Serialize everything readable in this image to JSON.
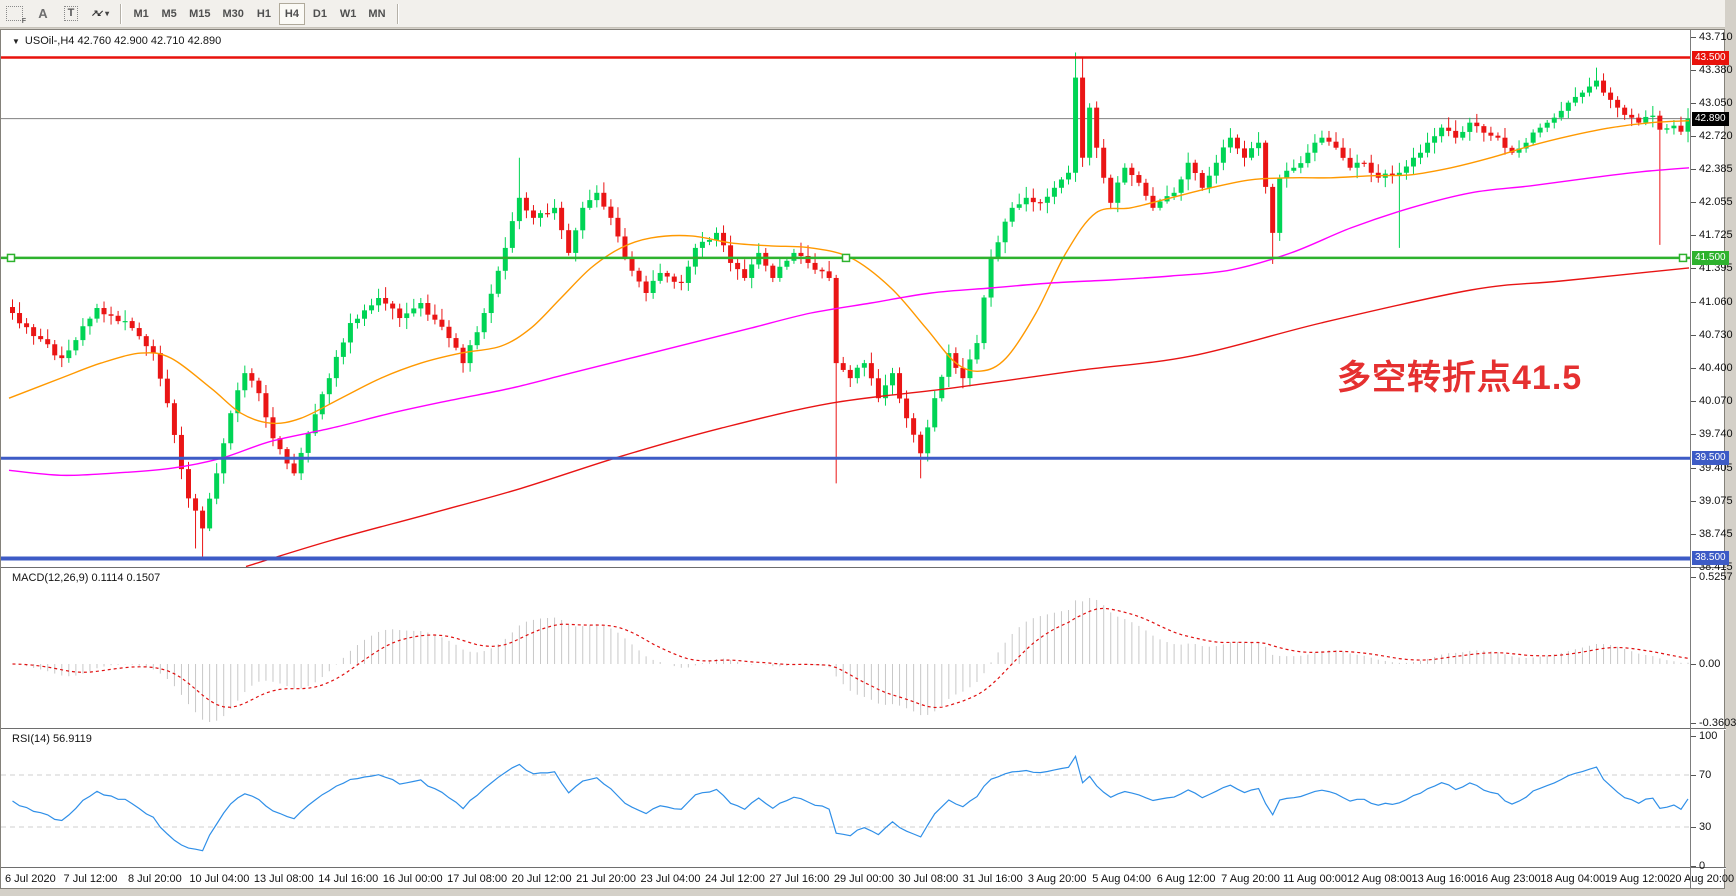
{
  "toolbar": {
    "icons": [
      {
        "name": "grid-period-icon",
        "label": "F"
      },
      {
        "name": "text-label-icon",
        "label": "A"
      },
      {
        "name": "text-box-icon",
        "label": "T"
      },
      {
        "name": "crosshair-arrows-icon",
        "label": "↗↙"
      },
      {
        "name": "dropdown-caret-icon",
        "label": "▾"
      }
    ],
    "timeframes": [
      "M1",
      "M5",
      "M15",
      "M30",
      "H1",
      "H4",
      "D1",
      "W1",
      "MN"
    ],
    "active_timeframe": "H4"
  },
  "chart": {
    "collapse_glyph": "▼",
    "title": "USOil-,H4  42.760 42.900 42.710 42.890",
    "symbol": "USOil-",
    "timeframe": "H4",
    "ohlc": {
      "open": "42.760",
      "high": "42.900",
      "low": "42.710",
      "close": "42.890"
    },
    "annotation": {
      "text": "多空转折点41.5",
      "color": "#e53030"
    }
  },
  "chart_data": {
    "type": "candlestick",
    "symbol": "USOil",
    "timeframe": "H4",
    "colors": {
      "up": "#00d455",
      "down": "#ea1515",
      "ma_fast": "#ff9900",
      "ma_mid": "#ff00ff",
      "ma_slow": "#e81414",
      "macd_hist": "#c8c8c8",
      "macd_signal": "#e01010",
      "rsi_line": "#2f8fe8",
      "current_price_line": "#808080"
    },
    "price_axis_ticks": [
      "43.710",
      "43.380",
      "43.050",
      "42.720",
      "42.385",
      "42.055",
      "41.725",
      "41.395",
      "41.060",
      "40.730",
      "40.400",
      "40.070",
      "39.740",
      "39.405",
      "39.075",
      "38.745",
      "38.415"
    ],
    "price_axis_tick_values": [
      43.71,
      43.38,
      43.05,
      42.72,
      42.385,
      42.055,
      41.725,
      41.395,
      41.06,
      40.73,
      40.4,
      40.07,
      39.74,
      39.405,
      39.075,
      38.745,
      38.415
    ],
    "badges": [
      {
        "text": "43.500",
        "value": 43.5,
        "color": "#e8120c"
      },
      {
        "text": "42.890",
        "value": 42.89,
        "color": "#000000"
      },
      {
        "text": "41.500",
        "value": 41.5,
        "color": "#2eb22e"
      },
      {
        "text": "39.500",
        "value": 39.5,
        "color": "#3d5bc6"
      },
      {
        "text": "38.500",
        "value": 38.5,
        "color": "#3d5bc6"
      }
    ],
    "horizontal_lines": [
      {
        "value": 43.5,
        "color": "#e8120c",
        "width": 2.5,
        "selected": false
      },
      {
        "value": 41.5,
        "color": "#2eb22e",
        "width": 2.5,
        "selected": true
      },
      {
        "value": 39.5,
        "color": "#3d5bc6",
        "width": 3,
        "selected": false
      },
      {
        "value": 38.5,
        "color": "#3d5bc6",
        "width": 4,
        "selected": false
      }
    ],
    "current_price": {
      "value": 42.89,
      "label": "42.890"
    },
    "x_labels": [
      "6 Jul 2020",
      "7 Jul 12:00",
      "8 Jul 20:00",
      "10 Jul 04:00",
      "13 Jul 08:00",
      "14 Jul 16:00",
      "16 Jul 00:00",
      "17 Jul 08:00",
      "20 Jul 12:00",
      "21 Jul 20:00",
      "23 Jul 04:00",
      "24 Jul 12:00",
      "27 Jul 16:00",
      "29 Jul 00:00",
      "30 Jul 08:00",
      "31 Jul 16:00",
      "3 Aug 20:00",
      "5 Aug 04:00",
      "6 Aug 12:00",
      "7 Aug 20:00",
      "11 Aug 00:00",
      "12 Aug 08:00",
      "13 Aug 16:00",
      "16 Aug 23:00",
      "18 Aug 04:00",
      "19 Aug 12:00",
      "20 Aug 20:00"
    ],
    "price_range": [
      38.415,
      43.755
    ],
    "close_anchors": [
      [
        0,
        40.95
      ],
      [
        3,
        40.72
      ],
      [
        7,
        40.5
      ],
      [
        12,
        41.0
      ],
      [
        17,
        40.8
      ],
      [
        20,
        40.55
      ],
      [
        22,
        40.05
      ],
      [
        25,
        39.1
      ],
      [
        27,
        38.8
      ],
      [
        29,
        39.35
      ],
      [
        31,
        39.95
      ],
      [
        33,
        40.35
      ],
      [
        35,
        40.15
      ],
      [
        37,
        39.7
      ],
      [
        40,
        39.35
      ],
      [
        42,
        39.75
      ],
      [
        45,
        40.3
      ],
      [
        48,
        40.85
      ],
      [
        52,
        41.1
      ],
      [
        55,
        40.9
      ],
      [
        58,
        41.05
      ],
      [
        62,
        40.7
      ],
      [
        64,
        40.45
      ],
      [
        67,
        40.95
      ],
      [
        70,
        41.6
      ],
      [
        72,
        42.1
      ],
      [
        74,
        41.9
      ],
      [
        77,
        42.0
      ],
      [
        79,
        41.55
      ],
      [
        81,
        42.0
      ],
      [
        83,
        42.15
      ],
      [
        85,
        41.9
      ],
      [
        87,
        41.5
      ],
      [
        90,
        41.15
      ],
      [
        92,
        41.35
      ],
      [
        95,
        41.25
      ],
      [
        97,
        41.6
      ],
      [
        100,
        41.75
      ],
      [
        102,
        41.45
      ],
      [
        104,
        41.3
      ],
      [
        106,
        41.55
      ],
      [
        108,
        41.3
      ],
      [
        111,
        41.55
      ],
      [
        113,
        41.45
      ],
      [
        116,
        41.3
      ],
      [
        117,
        40.45
      ],
      [
        119,
        40.3
      ],
      [
        121,
        40.45
      ],
      [
        123,
        40.1
      ],
      [
        125,
        40.35
      ],
      [
        127,
        39.9
      ],
      [
        129,
        39.55
      ],
      [
        131,
        40.1
      ],
      [
        133,
        40.55
      ],
      [
        135,
        40.3
      ],
      [
        137,
        40.65
      ],
      [
        139,
        41.5
      ],
      [
        142,
        42.0
      ],
      [
        144,
        42.1
      ],
      [
        146,
        42.05
      ],
      [
        148,
        42.2
      ],
      [
        150,
        42.35
      ],
      [
        151,
        43.3
      ],
      [
        152,
        42.5
      ],
      [
        153,
        43.0
      ],
      [
        154,
        42.6
      ],
      [
        155,
        42.3
      ],
      [
        156,
        42.05
      ],
      [
        158,
        42.4
      ],
      [
        160,
        42.25
      ],
      [
        162,
        42.0
      ],
      [
        165,
        42.15
      ],
      [
        167,
        42.45
      ],
      [
        169,
        42.2
      ],
      [
        171,
        42.45
      ],
      [
        173,
        42.7
      ],
      [
        175,
        42.5
      ],
      [
        177,
        42.65
      ],
      [
        179,
        41.75
      ],
      [
        180,
        42.3
      ],
      [
        182,
        42.4
      ],
      [
        184,
        42.55
      ],
      [
        186,
        42.7
      ],
      [
        188,
        42.6
      ],
      [
        190,
        42.4
      ],
      [
        192,
        42.45
      ],
      [
        194,
        42.3
      ],
      [
        197,
        42.35
      ],
      [
        199,
        42.5
      ],
      [
        201,
        42.65
      ],
      [
        203,
        42.8
      ],
      [
        205,
        42.7
      ],
      [
        207,
        42.85
      ],
      [
        209,
        42.75
      ],
      [
        211,
        42.7
      ],
      [
        213,
        42.55
      ],
      [
        215,
        42.65
      ],
      [
        217,
        42.8
      ],
      [
        219,
        42.9
      ],
      [
        221,
        43.05
      ],
      [
        223,
        43.15
      ],
      [
        225,
        43.27
      ],
      [
        226,
        43.15
      ],
      [
        228,
        43.0
      ],
      [
        230,
        42.9
      ],
      [
        231,
        42.85
      ],
      [
        233,
        42.92
      ],
      [
        234,
        42.78
      ],
      [
        236,
        42.82
      ],
      [
        237,
        42.76
      ],
      [
        238,
        42.89
      ]
    ],
    "special_wicks": [
      {
        "i": 26,
        "low": 38.6
      },
      {
        "i": 27,
        "low": 38.52
      },
      {
        "i": 72,
        "high": 42.5
      },
      {
        "i": 117,
        "low": 39.25
      },
      {
        "i": 129,
        "low": 39.3
      },
      {
        "i": 151,
        "high": 43.55
      },
      {
        "i": 152,
        "high": 43.5
      },
      {
        "i": 179,
        "low": 41.44
      },
      {
        "i": 197,
        "low": 41.6
      },
      {
        "i": 225,
        "high": 43.4
      },
      {
        "i": 234,
        "low": 41.63
      }
    ],
    "moving_averages": [
      {
        "name": "ma-fast-orange",
        "color": "#ff9900",
        "points": [
          [
            8,
            40.1
          ],
          [
            60,
            40.3
          ],
          [
            100,
            40.45
          ],
          [
            140,
            40.55
          ],
          [
            170,
            40.5
          ],
          [
            210,
            40.2
          ],
          [
            240,
            39.95
          ],
          [
            270,
            39.85
          ],
          [
            300,
            39.9
          ],
          [
            340,
            40.1
          ],
          [
            380,
            40.3
          ],
          [
            420,
            40.45
          ],
          [
            460,
            40.55
          ],
          [
            500,
            40.62
          ],
          [
            530,
            40.8
          ],
          [
            560,
            41.1
          ],
          [
            590,
            41.4
          ],
          [
            620,
            41.6
          ],
          [
            650,
            41.7
          ],
          [
            690,
            41.72
          ],
          [
            730,
            41.65
          ],
          [
            770,
            41.62
          ],
          [
            810,
            41.6
          ],
          [
            850,
            41.5
          ],
          [
            890,
            41.2
          ],
          [
            925,
            40.8
          ],
          [
            955,
            40.45
          ],
          [
            980,
            40.37
          ],
          [
            1005,
            40.5
          ],
          [
            1035,
            40.95
          ],
          [
            1065,
            41.55
          ],
          [
            1095,
            41.95
          ],
          [
            1130,
            42.0
          ],
          [
            1170,
            42.1
          ],
          [
            1210,
            42.2
          ],
          [
            1250,
            42.28
          ],
          [
            1290,
            42.3
          ],
          [
            1330,
            42.3
          ],
          [
            1370,
            42.32
          ],
          [
            1410,
            42.33
          ],
          [
            1450,
            42.4
          ],
          [
            1490,
            42.5
          ],
          [
            1530,
            42.62
          ],
          [
            1570,
            42.72
          ],
          [
            1610,
            42.8
          ],
          [
            1650,
            42.85
          ],
          [
            1688,
            42.87
          ]
        ]
      },
      {
        "name": "ma-mid-magenta",
        "color": "#ff00ff",
        "points": [
          [
            8,
            39.38
          ],
          [
            60,
            39.33
          ],
          [
            110,
            39.35
          ],
          [
            170,
            39.4
          ],
          [
            220,
            39.5
          ],
          [
            270,
            39.67
          ],
          [
            330,
            39.8
          ],
          [
            390,
            39.95
          ],
          [
            450,
            40.08
          ],
          [
            510,
            40.2
          ],
          [
            570,
            40.35
          ],
          [
            630,
            40.5
          ],
          [
            690,
            40.65
          ],
          [
            750,
            40.8
          ],
          [
            810,
            40.95
          ],
          [
            870,
            41.05
          ],
          [
            930,
            41.15
          ],
          [
            990,
            41.2
          ],
          [
            1050,
            41.25
          ],
          [
            1110,
            41.28
          ],
          [
            1170,
            41.32
          ],
          [
            1230,
            41.38
          ],
          [
            1290,
            41.55
          ],
          [
            1350,
            41.8
          ],
          [
            1410,
            42.0
          ],
          [
            1470,
            42.15
          ],
          [
            1530,
            42.22
          ],
          [
            1590,
            42.3
          ],
          [
            1640,
            42.36
          ],
          [
            1688,
            42.4
          ]
        ]
      },
      {
        "name": "ma-slow-red",
        "color": "#e81414",
        "points": [
          [
            245,
            38.42
          ],
          [
            330,
            38.68
          ],
          [
            430,
            38.95
          ],
          [
            520,
            39.2
          ],
          [
            620,
            39.52
          ],
          [
            720,
            39.8
          ],
          [
            830,
            40.05
          ],
          [
            950,
            40.2
          ],
          [
            1080,
            40.38
          ],
          [
            1190,
            40.52
          ],
          [
            1320,
            40.85
          ],
          [
            1470,
            41.18
          ],
          [
            1560,
            41.27
          ],
          [
            1688,
            41.4
          ]
        ]
      }
    ],
    "indicators": {
      "macd": {
        "label": "MACD(12,26,9) 0.1114 0.1507",
        "name": "MACD(12,26,9)",
        "value_main": "0.1114",
        "value_signal": "0.1507",
        "axis_labels": [
          "0.5257",
          "0.00",
          "-0.3603"
        ]
      },
      "rsi": {
        "label": "RSI(14) 56.9119",
        "name": "RSI(14)",
        "value": "56.9119",
        "axis_labels": [
          "100",
          "70",
          "30",
          "0"
        ],
        "axis_values": [
          100,
          70,
          30,
          0
        ],
        "level_lines": [
          70,
          30
        ]
      }
    }
  }
}
